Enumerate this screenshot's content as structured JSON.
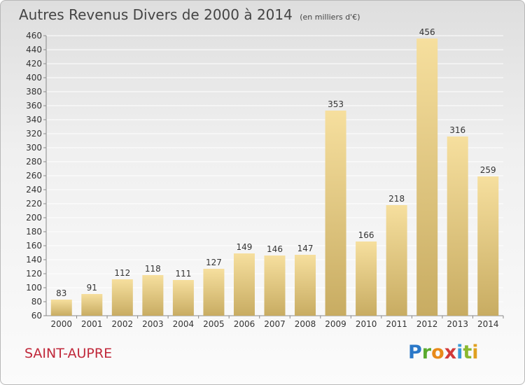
{
  "header": {
    "title": "Autres Revenus Divers de 2000 à 2014",
    "subtitle": "(en milliers d'€)"
  },
  "footer": {
    "commune": "SAINT-AUPRE",
    "logo": [
      "P",
      "r",
      "o",
      "x",
      "i",
      "t",
      "i"
    ]
  },
  "colors": {
    "bar_top": "#f6df9e",
    "bar_bottom": "#c8ac62",
    "grid": "#ffffff",
    "commune": "#c0283a"
  },
  "chart_data": {
    "type": "bar",
    "title": "Autres Revenus Divers de 2000 à 2014",
    "subtitle": "(en milliers d'€)",
    "xlabel": "",
    "ylabel": "",
    "categories": [
      "2000",
      "2001",
      "2002",
      "2003",
      "2004",
      "2005",
      "2006",
      "2007",
      "2008",
      "2009",
      "2010",
      "2011",
      "2012",
      "2013",
      "2014"
    ],
    "values": [
      83,
      91,
      112,
      118,
      111,
      127,
      149,
      146,
      147,
      353,
      166,
      218,
      456,
      316,
      259
    ],
    "ylim": [
      60,
      460
    ],
    "yticks": [
      60,
      80,
      100,
      120,
      140,
      160,
      180,
      200,
      220,
      240,
      260,
      280,
      300,
      320,
      340,
      360,
      380,
      400,
      420,
      440,
      460
    ],
    "grid": true,
    "legend": "none"
  }
}
